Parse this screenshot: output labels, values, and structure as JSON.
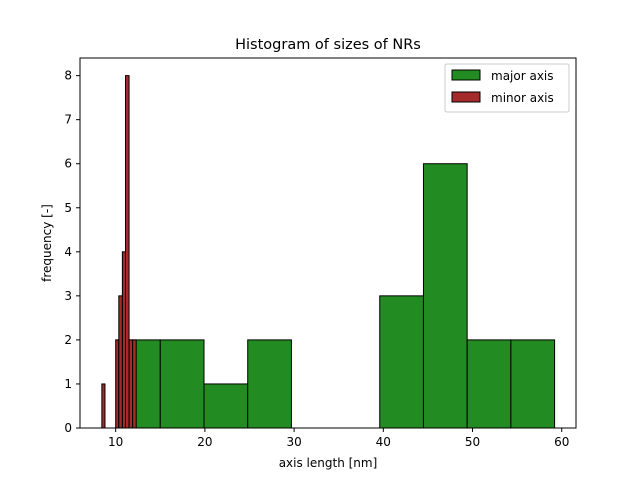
{
  "chart_data": {
    "type": "bar",
    "title": "Histogram of sizes of NRs",
    "xlabel": "axis length [nm]",
    "ylabel": "frequency [-]",
    "xlim": [
      6.0,
      61.6
    ],
    "ylim": [
      0,
      8.4
    ],
    "xticks": [
      10,
      20,
      30,
      40,
      50,
      60
    ],
    "yticks": [
      0,
      1,
      2,
      3,
      4,
      5,
      6,
      7,
      8
    ],
    "grid": false,
    "legend_position": "top-right",
    "series": [
      {
        "name": "major axis",
        "color": "#228b22",
        "bins": [
          {
            "x0": 10.1,
            "x1": 15.0,
            "count": 2
          },
          {
            "x0": 15.0,
            "x1": 19.9,
            "count": 2
          },
          {
            "x0": 19.9,
            "x1": 24.8,
            "count": 1
          },
          {
            "x0": 24.8,
            "x1": 29.7,
            "count": 2
          },
          {
            "x0": 29.7,
            "x1": 34.7,
            "count": 0
          },
          {
            "x0": 34.7,
            "x1": 39.6,
            "count": 0
          },
          {
            "x0": 39.6,
            "x1": 44.5,
            "count": 3
          },
          {
            "x0": 44.5,
            "x1": 49.4,
            "count": 6
          },
          {
            "x0": 49.4,
            "x1": 54.3,
            "count": 2
          },
          {
            "x0": 54.3,
            "x1": 59.2,
            "count": 2
          }
        ]
      },
      {
        "name": "minor axis",
        "color": "#a52a2a",
        "bins": [
          {
            "x0": 8.45,
            "x1": 8.8,
            "count": 1
          },
          {
            "x0": 8.8,
            "x1": 9.2,
            "count": 0
          },
          {
            "x0": 9.2,
            "x1": 9.6,
            "count": 0
          },
          {
            "x0": 9.6,
            "x1": 10.0,
            "count": 0
          },
          {
            "x0": 10.0,
            "x1": 10.35,
            "count": 2
          },
          {
            "x0": 10.35,
            "x1": 10.75,
            "count": 3
          },
          {
            "x0": 10.75,
            "x1": 11.1,
            "count": 4
          },
          {
            "x0": 11.1,
            "x1": 11.5,
            "count": 8
          },
          {
            "x0": 11.5,
            "x1": 11.9,
            "count": 2
          },
          {
            "x0": 11.9,
            "x1": 12.3,
            "count": 2
          }
        ]
      }
    ]
  }
}
